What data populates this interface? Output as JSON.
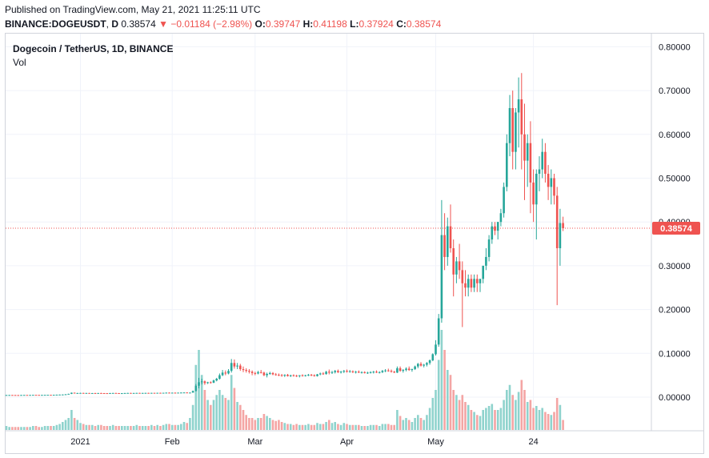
{
  "header": {
    "published": "Published on TradingView.com, May 21, 2021 11:25:11 UTC",
    "symbol": "BINANCE:DOGEUSDT",
    "interval": "D",
    "last": "0.38574",
    "arrow": "▼",
    "change": "−0.01184 (−2.98%)",
    "o_label": "O:",
    "o_value": "0.39747",
    "h_label": "H:",
    "h_value": "0.41198",
    "l_label": "L:",
    "l_value": "0.37924",
    "c_label": "C:",
    "c_value": "0.38574"
  },
  "legend": {
    "title": "Dogecoin / TetherUS, 1D, BINANCE",
    "volume": "Vol"
  },
  "colors": {
    "up": "#26a69a",
    "down": "#ef5350",
    "up_vol": "#8fd3cd",
    "down_vol": "#f4a5a4"
  },
  "chart_data": {
    "type": "candlestick",
    "ylim": [
      -0.075,
      0.83
    ],
    "yticks": [
      "0.80000",
      "0.70000",
      "0.60000",
      "0.50000",
      "0.40000",
      "0.30000",
      "0.20000",
      "0.10000",
      "0.00000"
    ],
    "xticks": [
      "2021",
      "Feb",
      "Mar",
      "Apr",
      "May",
      "24"
    ],
    "last_price": 0.38574,
    "last_price_label": "0.38574",
    "candles": [
      [
        0.0047,
        0.005,
        0.0046,
        0.0048,
        0.04
      ],
      [
        0.0048,
        0.005,
        0.0047,
        0.0049,
        0.03
      ],
      [
        0.0049,
        0.0051,
        0.0047,
        0.0048,
        0.03
      ],
      [
        0.0048,
        0.005,
        0.0046,
        0.0047,
        0.03
      ],
      [
        0.0047,
        0.0049,
        0.0045,
        0.0046,
        0.03
      ],
      [
        0.0046,
        0.005,
        0.0045,
        0.0049,
        0.03
      ],
      [
        0.0049,
        0.0052,
        0.0048,
        0.005,
        0.03
      ],
      [
        0.005,
        0.0052,
        0.0048,
        0.0049,
        0.03
      ],
      [
        0.0049,
        0.0051,
        0.0047,
        0.005,
        0.03
      ],
      [
        0.005,
        0.0053,
        0.0049,
        0.0052,
        0.04
      ],
      [
        0.0052,
        0.0054,
        0.005,
        0.0051,
        0.04
      ],
      [
        0.0051,
        0.0053,
        0.0049,
        0.005,
        0.03
      ],
      [
        0.005,
        0.0052,
        0.0048,
        0.0051,
        0.03
      ],
      [
        0.0051,
        0.0053,
        0.0049,
        0.0052,
        0.04
      ],
      [
        0.0052,
        0.0054,
        0.005,
        0.0053,
        0.04
      ],
      [
        0.0053,
        0.0055,
        0.0051,
        0.0052,
        0.04
      ],
      [
        0.0052,
        0.0054,
        0.005,
        0.0054,
        0.04
      ],
      [
        0.0054,
        0.0057,
        0.0052,
        0.0056,
        0.05
      ],
      [
        0.0056,
        0.0059,
        0.0054,
        0.0058,
        0.06
      ],
      [
        0.0058,
        0.0062,
        0.0056,
        0.006,
        0.08
      ],
      [
        0.006,
        0.0068,
        0.0058,
        0.0065,
        0.1
      ],
      [
        0.0065,
        0.0078,
        0.0063,
        0.0075,
        0.12
      ],
      [
        0.0075,
        0.0105,
        0.007,
        0.01,
        0.2
      ],
      [
        0.01,
        0.0105,
        0.0085,
        0.009,
        0.12
      ],
      [
        0.009,
        0.0098,
        0.0082,
        0.0093,
        0.1
      ],
      [
        0.0093,
        0.01,
        0.0088,
        0.0095,
        0.07
      ],
      [
        0.0095,
        0.01,
        0.0088,
        0.0092,
        0.06
      ],
      [
        0.0092,
        0.0097,
        0.0086,
        0.0094,
        0.05
      ],
      [
        0.0094,
        0.0096,
        0.0085,
        0.0088,
        0.05
      ],
      [
        0.0088,
        0.0094,
        0.0084,
        0.0092,
        0.05
      ],
      [
        0.0092,
        0.0097,
        0.0088,
        0.009,
        0.04
      ],
      [
        0.009,
        0.0095,
        0.0085,
        0.0093,
        0.05
      ],
      [
        0.0093,
        0.0098,
        0.0088,
        0.0091,
        0.05
      ],
      [
        0.0091,
        0.0094,
        0.0086,
        0.009,
        0.04
      ],
      [
        0.009,
        0.0093,
        0.0085,
        0.0088,
        0.04
      ],
      [
        0.0088,
        0.0095,
        0.0084,
        0.0092,
        0.04
      ],
      [
        0.0092,
        0.0097,
        0.0088,
        0.0094,
        0.05
      ],
      [
        0.0094,
        0.0098,
        0.0089,
        0.0091,
        0.04
      ],
      [
        0.0091,
        0.0094,
        0.0086,
        0.0089,
        0.04
      ],
      [
        0.0089,
        0.0093,
        0.0085,
        0.009,
        0.04
      ],
      [
        0.009,
        0.0095,
        0.0087,
        0.0093,
        0.04
      ],
      [
        0.0093,
        0.0097,
        0.0088,
        0.0095,
        0.04
      ],
      [
        0.0095,
        0.0098,
        0.009,
        0.0092,
        0.04
      ],
      [
        0.0092,
        0.0096,
        0.0088,
        0.0094,
        0.04
      ],
      [
        0.0094,
        0.0098,
        0.009,
        0.0096,
        0.05
      ],
      [
        0.0096,
        0.0099,
        0.0091,
        0.0093,
        0.04
      ],
      [
        0.0093,
        0.0097,
        0.0089,
        0.0095,
        0.04
      ],
      [
        0.0095,
        0.0099,
        0.009,
        0.0096,
        0.04
      ],
      [
        0.0096,
        0.01,
        0.0091,
        0.0094,
        0.04
      ],
      [
        0.0094,
        0.0098,
        0.009,
        0.0097,
        0.05
      ],
      [
        0.0097,
        0.0101,
        0.0092,
        0.0095,
        0.04
      ],
      [
        0.0095,
        0.0099,
        0.0091,
        0.0098,
        0.05
      ],
      [
        0.0098,
        0.0102,
        0.0093,
        0.0096,
        0.04
      ],
      [
        0.0096,
        0.01,
        0.0092,
        0.0099,
        0.05
      ],
      [
        0.0099,
        0.0105,
        0.0094,
        0.0102,
        0.06
      ],
      [
        0.0102,
        0.0108,
        0.0096,
        0.01,
        0.06
      ],
      [
        0.01,
        0.0104,
        0.0095,
        0.0101,
        0.05
      ],
      [
        0.0101,
        0.0106,
        0.0097,
        0.0099,
        0.05
      ],
      [
        0.0099,
        0.0103,
        0.0094,
        0.0102,
        0.05
      ],
      [
        0.0102,
        0.0107,
        0.0098,
        0.0104,
        0.06
      ],
      [
        0.0104,
        0.011,
        0.01,
        0.0106,
        0.08
      ],
      [
        0.0106,
        0.011,
        0.0099,
        0.0101,
        0.07
      ],
      [
        0.0101,
        0.0106,
        0.0095,
        0.0103,
        0.12
      ],
      [
        0.0103,
        0.015,
        0.01,
        0.014,
        0.25
      ],
      [
        0.014,
        0.03,
        0.013,
        0.026,
        0.65
      ],
      [
        0.026,
        0.044,
        0.02,
        0.034,
        0.8
      ],
      [
        0.034,
        0.042,
        0.029,
        0.036,
        0.55
      ],
      [
        0.036,
        0.038,
        0.028,
        0.032,
        0.4
      ],
      [
        0.032,
        0.035,
        0.03,
        0.034,
        0.3
      ],
      [
        0.034,
        0.036,
        0.031,
        0.033,
        0.25
      ],
      [
        0.033,
        0.04,
        0.032,
        0.038,
        0.3
      ],
      [
        0.038,
        0.044,
        0.036,
        0.042,
        0.35
      ],
      [
        0.042,
        0.054,
        0.04,
        0.05,
        0.4
      ],
      [
        0.05,
        0.062,
        0.048,
        0.056,
        0.35
      ],
      [
        0.056,
        0.061,
        0.05,
        0.054,
        0.32
      ],
      [
        0.054,
        0.064,
        0.052,
        0.06,
        0.3
      ],
      [
        0.06,
        0.087,
        0.056,
        0.078,
        0.55
      ],
      [
        0.078,
        0.086,
        0.065,
        0.07,
        0.42
      ],
      [
        0.07,
        0.078,
        0.064,
        0.072,
        0.28
      ],
      [
        0.072,
        0.076,
        0.06,
        0.064,
        0.25
      ],
      [
        0.064,
        0.07,
        0.057,
        0.062,
        0.2
      ],
      [
        0.062,
        0.066,
        0.056,
        0.06,
        0.15
      ],
      [
        0.06,
        0.064,
        0.054,
        0.058,
        0.12
      ],
      [
        0.058,
        0.061,
        0.05,
        0.055,
        0.12
      ],
      [
        0.055,
        0.058,
        0.05,
        0.054,
        0.1
      ],
      [
        0.054,
        0.06,
        0.052,
        0.057,
        0.12
      ],
      [
        0.057,
        0.062,
        0.054,
        0.056,
        0.12
      ],
      [
        0.056,
        0.058,
        0.048,
        0.05,
        0.16
      ],
      [
        0.05,
        0.056,
        0.045,
        0.053,
        0.14
      ],
      [
        0.053,
        0.058,
        0.051,
        0.055,
        0.12
      ],
      [
        0.055,
        0.057,
        0.05,
        0.052,
        0.1
      ],
      [
        0.052,
        0.055,
        0.049,
        0.051,
        0.09
      ],
      [
        0.051,
        0.054,
        0.048,
        0.05,
        0.1
      ],
      [
        0.05,
        0.053,
        0.047,
        0.049,
        0.08
      ],
      [
        0.049,
        0.052,
        0.046,
        0.051,
        0.07
      ],
      [
        0.051,
        0.053,
        0.047,
        0.048,
        0.06
      ],
      [
        0.048,
        0.051,
        0.046,
        0.05,
        0.06
      ],
      [
        0.05,
        0.052,
        0.047,
        0.049,
        0.05
      ],
      [
        0.049,
        0.051,
        0.046,
        0.048,
        0.06
      ],
      [
        0.048,
        0.05,
        0.045,
        0.05,
        0.05
      ],
      [
        0.05,
        0.052,
        0.047,
        0.049,
        0.05
      ],
      [
        0.049,
        0.051,
        0.047,
        0.05,
        0.05
      ],
      [
        0.05,
        0.053,
        0.048,
        0.051,
        0.06
      ],
      [
        0.051,
        0.053,
        0.048,
        0.05,
        0.05
      ],
      [
        0.05,
        0.052,
        0.047,
        0.048,
        0.05
      ],
      [
        0.048,
        0.053,
        0.047,
        0.052,
        0.07
      ],
      [
        0.052,
        0.056,
        0.05,
        0.054,
        0.06
      ],
      [
        0.054,
        0.057,
        0.051,
        0.053,
        0.06
      ],
      [
        0.053,
        0.06,
        0.051,
        0.058,
        0.08
      ],
      [
        0.058,
        0.063,
        0.052,
        0.056,
        0.1
      ],
      [
        0.056,
        0.06,
        0.053,
        0.057,
        0.07
      ],
      [
        0.057,
        0.062,
        0.054,
        0.06,
        0.08
      ],
      [
        0.06,
        0.063,
        0.055,
        0.057,
        0.06
      ],
      [
        0.057,
        0.06,
        0.054,
        0.058,
        0.05
      ],
      [
        0.058,
        0.062,
        0.055,
        0.06,
        0.07
      ],
      [
        0.06,
        0.063,
        0.056,
        0.058,
        0.06
      ],
      [
        0.058,
        0.062,
        0.056,
        0.059,
        0.05
      ],
      [
        0.059,
        0.061,
        0.055,
        0.057,
        0.05
      ],
      [
        0.057,
        0.06,
        0.054,
        0.058,
        0.05
      ],
      [
        0.058,
        0.061,
        0.055,
        0.056,
        0.05
      ],
      [
        0.056,
        0.059,
        0.054,
        0.057,
        0.04
      ],
      [
        0.057,
        0.059,
        0.054,
        0.055,
        0.04
      ],
      [
        0.055,
        0.058,
        0.053,
        0.056,
        0.04
      ],
      [
        0.056,
        0.059,
        0.054,
        0.057,
        0.05
      ],
      [
        0.057,
        0.06,
        0.054,
        0.058,
        0.05
      ],
      [
        0.058,
        0.061,
        0.055,
        0.056,
        0.05
      ],
      [
        0.056,
        0.059,
        0.054,
        0.057,
        0.04
      ],
      [
        0.057,
        0.062,
        0.055,
        0.06,
        0.06
      ],
      [
        0.06,
        0.064,
        0.057,
        0.061,
        0.06
      ],
      [
        0.061,
        0.065,
        0.058,
        0.06,
        0.06
      ],
      [
        0.06,
        0.063,
        0.056,
        0.058,
        0.05
      ],
      [
        0.058,
        0.06,
        0.055,
        0.056,
        0.05
      ],
      [
        0.056,
        0.07,
        0.055,
        0.066,
        0.2
      ],
      [
        0.066,
        0.07,
        0.058,
        0.06,
        0.14
      ],
      [
        0.06,
        0.064,
        0.056,
        0.062,
        0.1
      ],
      [
        0.062,
        0.068,
        0.059,
        0.065,
        0.12
      ],
      [
        0.065,
        0.07,
        0.06,
        0.062,
        0.1
      ],
      [
        0.062,
        0.065,
        0.058,
        0.064,
        0.08
      ],
      [
        0.064,
        0.072,
        0.062,
        0.07,
        0.12
      ],
      [
        0.07,
        0.078,
        0.066,
        0.076,
        0.15
      ],
      [
        0.076,
        0.08,
        0.07,
        0.072,
        0.12
      ],
      [
        0.072,
        0.076,
        0.068,
        0.074,
        0.1
      ],
      [
        0.074,
        0.08,
        0.07,
        0.078,
        0.15
      ],
      [
        0.078,
        0.086,
        0.074,
        0.084,
        0.22
      ],
      [
        0.084,
        0.1,
        0.082,
        0.098,
        0.32
      ],
      [
        0.098,
        0.13,
        0.095,
        0.12,
        0.4
      ],
      [
        0.12,
        0.19,
        0.115,
        0.18,
        0.7
      ],
      [
        0.18,
        0.45,
        0.17,
        0.37,
        1.0
      ],
      [
        0.37,
        0.42,
        0.29,
        0.32,
        0.8
      ],
      [
        0.32,
        0.41,
        0.3,
        0.39,
        0.6
      ],
      [
        0.39,
        0.44,
        0.33,
        0.34,
        0.55
      ],
      [
        0.34,
        0.36,
        0.23,
        0.28,
        0.4
      ],
      [
        0.28,
        0.32,
        0.26,
        0.31,
        0.35
      ],
      [
        0.31,
        0.35,
        0.27,
        0.29,
        0.3
      ],
      [
        0.29,
        0.31,
        0.16,
        0.26,
        0.35
      ],
      [
        0.26,
        0.29,
        0.23,
        0.25,
        0.28
      ],
      [
        0.25,
        0.28,
        0.23,
        0.27,
        0.25
      ],
      [
        0.27,
        0.28,
        0.24,
        0.25,
        0.2
      ],
      [
        0.25,
        0.28,
        0.24,
        0.27,
        0.18
      ],
      [
        0.27,
        0.28,
        0.24,
        0.26,
        0.15
      ],
      [
        0.26,
        0.27,
        0.24,
        0.27,
        0.14
      ],
      [
        0.27,
        0.3,
        0.26,
        0.3,
        0.2
      ],
      [
        0.3,
        0.34,
        0.29,
        0.32,
        0.22
      ],
      [
        0.32,
        0.37,
        0.31,
        0.36,
        0.24
      ],
      [
        0.36,
        0.4,
        0.35,
        0.39,
        0.26
      ],
      [
        0.39,
        0.4,
        0.37,
        0.38,
        0.2
      ],
      [
        0.38,
        0.4,
        0.36,
        0.4,
        0.2
      ],
      [
        0.4,
        0.43,
        0.39,
        0.42,
        0.22
      ],
      [
        0.42,
        0.49,
        0.41,
        0.48,
        0.3
      ],
      [
        0.48,
        0.6,
        0.47,
        0.58,
        0.4
      ],
      [
        0.58,
        0.69,
        0.55,
        0.66,
        0.45
      ],
      [
        0.66,
        0.7,
        0.52,
        0.56,
        0.35
      ],
      [
        0.56,
        0.66,
        0.52,
        0.65,
        0.3
      ],
      [
        0.65,
        0.73,
        0.57,
        0.68,
        0.38
      ],
      [
        0.68,
        0.74,
        0.52,
        0.6,
        0.5
      ],
      [
        0.6,
        0.67,
        0.45,
        0.54,
        0.4
      ],
      [
        0.54,
        0.6,
        0.48,
        0.58,
        0.28
      ],
      [
        0.58,
        0.63,
        0.42,
        0.49,
        0.3
      ],
      [
        0.49,
        0.52,
        0.4,
        0.44,
        0.22
      ],
      [
        0.44,
        0.52,
        0.36,
        0.51,
        0.24
      ],
      [
        0.51,
        0.55,
        0.47,
        0.52,
        0.2
      ],
      [
        0.52,
        0.59,
        0.5,
        0.56,
        0.22
      ],
      [
        0.56,
        0.58,
        0.49,
        0.51,
        0.18
      ],
      [
        0.51,
        0.53,
        0.45,
        0.48,
        0.16
      ],
      [
        0.48,
        0.52,
        0.44,
        0.5,
        0.15
      ],
      [
        0.5,
        0.51,
        0.44,
        0.46,
        0.18
      ],
      [
        0.46,
        0.48,
        0.21,
        0.34,
        0.32
      ],
      [
        0.34,
        0.43,
        0.3,
        0.3975,
        0.25
      ],
      [
        0.3975,
        0.412,
        0.3792,
        0.3857,
        0.1
      ]
    ]
  }
}
